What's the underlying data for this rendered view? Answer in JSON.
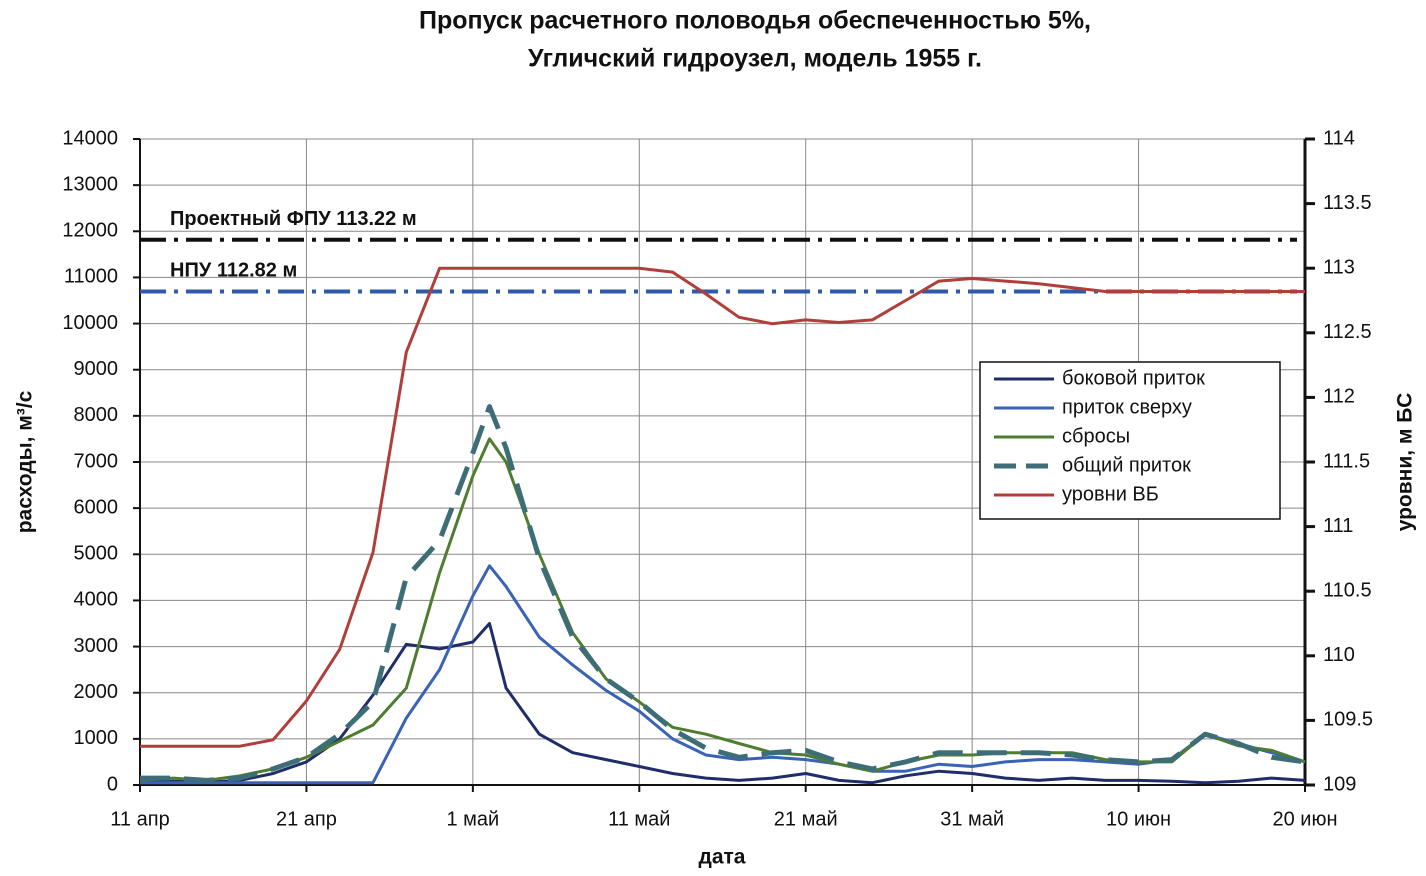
{
  "chart_data": {
    "type": "line",
    "title": [
      "Пропуск расчетного половодья обеспеченностью 5%,",
      "Угличский гидроузел, модель 1955 г."
    ],
    "xlabel": "дата",
    "ylabel": "расходы, м³/с",
    "y2label": "уровни, м БС",
    "x": [
      0,
      2,
      4,
      6,
      8,
      10,
      12,
      14,
      16,
      18,
      20,
      21,
      22,
      24,
      26,
      28,
      30,
      32,
      34,
      36,
      38,
      40,
      42,
      44,
      46,
      48,
      50,
      52,
      54,
      56,
      58,
      60,
      62,
      64,
      66,
      68,
      70
    ],
    "xlim": [
      0,
      70
    ],
    "xticks": [
      {
        "value": 0,
        "label": "11 апр"
      },
      {
        "value": 10,
        "label": "21 апр"
      },
      {
        "value": 20,
        "label": "1 май"
      },
      {
        "value": 30,
        "label": "11 май"
      },
      {
        "value": 40,
        "label": "21 май"
      },
      {
        "value": 50,
        "label": "31 май"
      },
      {
        "value": 60,
        "label": "10 июн"
      },
      {
        "value": 70,
        "label": "20 июн"
      }
    ],
    "ylim": [
      0,
      14000
    ],
    "yticks": [
      0,
      1000,
      2000,
      3000,
      4000,
      5000,
      6000,
      7000,
      8000,
      9000,
      10000,
      11000,
      12000,
      13000,
      14000
    ],
    "y2lim": [
      109,
      114
    ],
    "y2ticks": [
      109,
      109.5,
      110,
      110.5,
      111,
      111.5,
      112,
      112.5,
      113,
      113.5,
      114
    ],
    "grid": true,
    "legend": "right",
    "series": [
      {
        "name": "боковой приток",
        "color": "#1f2d6b",
        "style": "solid",
        "values": [
          50,
          80,
          60,
          100,
          250,
          500,
          1000,
          1950,
          3050,
          2950,
          3100,
          3500,
          2100,
          1100,
          700,
          550,
          400,
          250,
          150,
          100,
          150,
          250,
          100,
          50,
          200,
          300,
          250,
          150,
          100,
          150,
          100,
          100,
          80,
          50,
          80,
          150,
          100
        ]
      },
      {
        "name": "приток сверху",
        "color": "#3a62b5",
        "style": "solid",
        "values": [
          50,
          50,
          50,
          50,
          50,
          50,
          50,
          50,
          1450,
          2500,
          4100,
          4750,
          4300,
          3200,
          2600,
          2050,
          1600,
          1000,
          650,
          550,
          600,
          550,
          450,
          300,
          300,
          450,
          400,
          500,
          550,
          550,
          500,
          450,
          550,
          1100,
          900,
          700,
          500
        ]
      },
      {
        "name": "сбросы",
        "color": "#4e7d2f",
        "style": "solid",
        "values": [
          100,
          150,
          100,
          200,
          350,
          600,
          950,
          1300,
          2100,
          4600,
          6700,
          7500,
          7000,
          5000,
          3300,
          2300,
          1800,
          1250,
          1100,
          900,
          700,
          650,
          450,
          300,
          500,
          650,
          650,
          700,
          700,
          700,
          550,
          500,
          500,
          1100,
          850,
          750,
          500
        ]
      },
      {
        "name": "общий приток",
        "color": "#3d6e78",
        "style": "dashed",
        "values": [
          150,
          150,
          100,
          150,
          350,
          600,
          1100,
          1800,
          4500,
          5300,
          7200,
          8200,
          7300,
          4900,
          3200,
          2300,
          1800,
          1200,
          800,
          600,
          700,
          750,
          500,
          350,
          500,
          700,
          700,
          700,
          700,
          650,
          550,
          500,
          550,
          1100,
          900,
          600,
          500
        ]
      },
      {
        "name": "уровни ВБ",
        "color": "#b03f3a",
        "style": "solid",
        "axis": "y2",
        "values": [
          109.3,
          109.3,
          109.3,
          109.3,
          109.35,
          109.65,
          110.05,
          110.8,
          112.35,
          113,
          113,
          113,
          113,
          113,
          113,
          113,
          113,
          112.97,
          112.8,
          112.62,
          112.57,
          112.6,
          112.58,
          112.6,
          112.75,
          112.9,
          112.92,
          112.9,
          112.88,
          112.85,
          112.82,
          112.82,
          112.82,
          112.82,
          112.82,
          112.82,
          112.82
        ]
      }
    ],
    "reference_lines": [
      {
        "label": "Проектный ФПУ 113.22 м",
        "value": 113.22,
        "axis": "y2",
        "color": "#111111"
      },
      {
        "label": "НПУ 112.82 м",
        "value": 112.82,
        "axis": "y2",
        "color": "#2f5aa8"
      }
    ]
  }
}
